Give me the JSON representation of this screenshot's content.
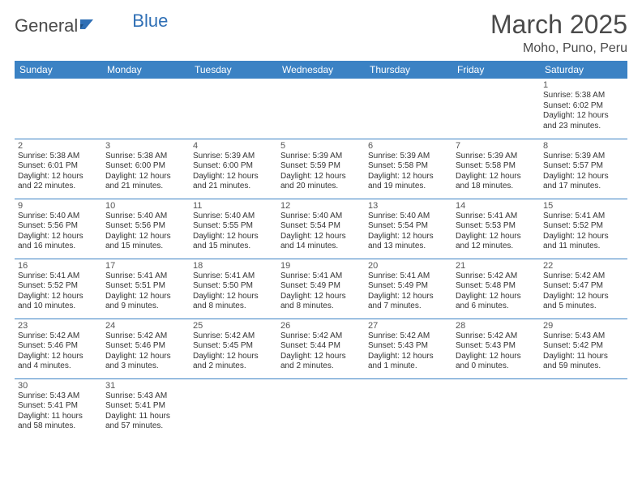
{
  "logo": {
    "text1": "General",
    "text2": "Blue"
  },
  "title": "March 2025",
  "location": "Moho, Puno, Peru",
  "headers": [
    "Sunday",
    "Monday",
    "Tuesday",
    "Wednesday",
    "Thursday",
    "Friday",
    "Saturday"
  ],
  "colors": {
    "header_bg": "#3b82c4",
    "header_fg": "#ffffff",
    "row_border": "#3b82c4",
    "logo_blue": "#2f6fb5"
  },
  "fonts": {
    "title_size_pt": 24,
    "location_size_pt": 12,
    "header_size_pt": 9,
    "daynum_size_pt": 8,
    "info_size_pt": 7
  },
  "weeks": [
    [
      null,
      null,
      null,
      null,
      null,
      null,
      {
        "n": "1",
        "sr": "Sunrise: 5:38 AM",
        "ss": "Sunset: 6:02 PM",
        "d1": "Daylight: 12 hours",
        "d2": "and 23 minutes."
      }
    ],
    [
      {
        "n": "2",
        "sr": "Sunrise: 5:38 AM",
        "ss": "Sunset: 6:01 PM",
        "d1": "Daylight: 12 hours",
        "d2": "and 22 minutes."
      },
      {
        "n": "3",
        "sr": "Sunrise: 5:38 AM",
        "ss": "Sunset: 6:00 PM",
        "d1": "Daylight: 12 hours",
        "d2": "and 21 minutes."
      },
      {
        "n": "4",
        "sr": "Sunrise: 5:39 AM",
        "ss": "Sunset: 6:00 PM",
        "d1": "Daylight: 12 hours",
        "d2": "and 21 minutes."
      },
      {
        "n": "5",
        "sr": "Sunrise: 5:39 AM",
        "ss": "Sunset: 5:59 PM",
        "d1": "Daylight: 12 hours",
        "d2": "and 20 minutes."
      },
      {
        "n": "6",
        "sr": "Sunrise: 5:39 AM",
        "ss": "Sunset: 5:58 PM",
        "d1": "Daylight: 12 hours",
        "d2": "and 19 minutes."
      },
      {
        "n": "7",
        "sr": "Sunrise: 5:39 AM",
        "ss": "Sunset: 5:58 PM",
        "d1": "Daylight: 12 hours",
        "d2": "and 18 minutes."
      },
      {
        "n": "8",
        "sr": "Sunrise: 5:39 AM",
        "ss": "Sunset: 5:57 PM",
        "d1": "Daylight: 12 hours",
        "d2": "and 17 minutes."
      }
    ],
    [
      {
        "n": "9",
        "sr": "Sunrise: 5:40 AM",
        "ss": "Sunset: 5:56 PM",
        "d1": "Daylight: 12 hours",
        "d2": "and 16 minutes."
      },
      {
        "n": "10",
        "sr": "Sunrise: 5:40 AM",
        "ss": "Sunset: 5:56 PM",
        "d1": "Daylight: 12 hours",
        "d2": "and 15 minutes."
      },
      {
        "n": "11",
        "sr": "Sunrise: 5:40 AM",
        "ss": "Sunset: 5:55 PM",
        "d1": "Daylight: 12 hours",
        "d2": "and 15 minutes."
      },
      {
        "n": "12",
        "sr": "Sunrise: 5:40 AM",
        "ss": "Sunset: 5:54 PM",
        "d1": "Daylight: 12 hours",
        "d2": "and 14 minutes."
      },
      {
        "n": "13",
        "sr": "Sunrise: 5:40 AM",
        "ss": "Sunset: 5:54 PM",
        "d1": "Daylight: 12 hours",
        "d2": "and 13 minutes."
      },
      {
        "n": "14",
        "sr": "Sunrise: 5:41 AM",
        "ss": "Sunset: 5:53 PM",
        "d1": "Daylight: 12 hours",
        "d2": "and 12 minutes."
      },
      {
        "n": "15",
        "sr": "Sunrise: 5:41 AM",
        "ss": "Sunset: 5:52 PM",
        "d1": "Daylight: 12 hours",
        "d2": "and 11 minutes."
      }
    ],
    [
      {
        "n": "16",
        "sr": "Sunrise: 5:41 AM",
        "ss": "Sunset: 5:52 PM",
        "d1": "Daylight: 12 hours",
        "d2": "and 10 minutes."
      },
      {
        "n": "17",
        "sr": "Sunrise: 5:41 AM",
        "ss": "Sunset: 5:51 PM",
        "d1": "Daylight: 12 hours",
        "d2": "and 9 minutes."
      },
      {
        "n": "18",
        "sr": "Sunrise: 5:41 AM",
        "ss": "Sunset: 5:50 PM",
        "d1": "Daylight: 12 hours",
        "d2": "and 8 minutes."
      },
      {
        "n": "19",
        "sr": "Sunrise: 5:41 AM",
        "ss": "Sunset: 5:49 PM",
        "d1": "Daylight: 12 hours",
        "d2": "and 8 minutes."
      },
      {
        "n": "20",
        "sr": "Sunrise: 5:41 AM",
        "ss": "Sunset: 5:49 PM",
        "d1": "Daylight: 12 hours",
        "d2": "and 7 minutes."
      },
      {
        "n": "21",
        "sr": "Sunrise: 5:42 AM",
        "ss": "Sunset: 5:48 PM",
        "d1": "Daylight: 12 hours",
        "d2": "and 6 minutes."
      },
      {
        "n": "22",
        "sr": "Sunrise: 5:42 AM",
        "ss": "Sunset: 5:47 PM",
        "d1": "Daylight: 12 hours",
        "d2": "and 5 minutes."
      }
    ],
    [
      {
        "n": "23",
        "sr": "Sunrise: 5:42 AM",
        "ss": "Sunset: 5:46 PM",
        "d1": "Daylight: 12 hours",
        "d2": "and 4 minutes."
      },
      {
        "n": "24",
        "sr": "Sunrise: 5:42 AM",
        "ss": "Sunset: 5:46 PM",
        "d1": "Daylight: 12 hours",
        "d2": "and 3 minutes."
      },
      {
        "n": "25",
        "sr": "Sunrise: 5:42 AM",
        "ss": "Sunset: 5:45 PM",
        "d1": "Daylight: 12 hours",
        "d2": "and 2 minutes."
      },
      {
        "n": "26",
        "sr": "Sunrise: 5:42 AM",
        "ss": "Sunset: 5:44 PM",
        "d1": "Daylight: 12 hours",
        "d2": "and 2 minutes."
      },
      {
        "n": "27",
        "sr": "Sunrise: 5:42 AM",
        "ss": "Sunset: 5:43 PM",
        "d1": "Daylight: 12 hours",
        "d2": "and 1 minute."
      },
      {
        "n": "28",
        "sr": "Sunrise: 5:42 AM",
        "ss": "Sunset: 5:43 PM",
        "d1": "Daylight: 12 hours",
        "d2": "and 0 minutes."
      },
      {
        "n": "29",
        "sr": "Sunrise: 5:43 AM",
        "ss": "Sunset: 5:42 PM",
        "d1": "Daylight: 11 hours",
        "d2": "and 59 minutes."
      }
    ],
    [
      {
        "n": "30",
        "sr": "Sunrise: 5:43 AM",
        "ss": "Sunset: 5:41 PM",
        "d1": "Daylight: 11 hours",
        "d2": "and 58 minutes."
      },
      {
        "n": "31",
        "sr": "Sunrise: 5:43 AM",
        "ss": "Sunset: 5:41 PM",
        "d1": "Daylight: 11 hours",
        "d2": "and 57 minutes."
      },
      null,
      null,
      null,
      null,
      null
    ]
  ]
}
